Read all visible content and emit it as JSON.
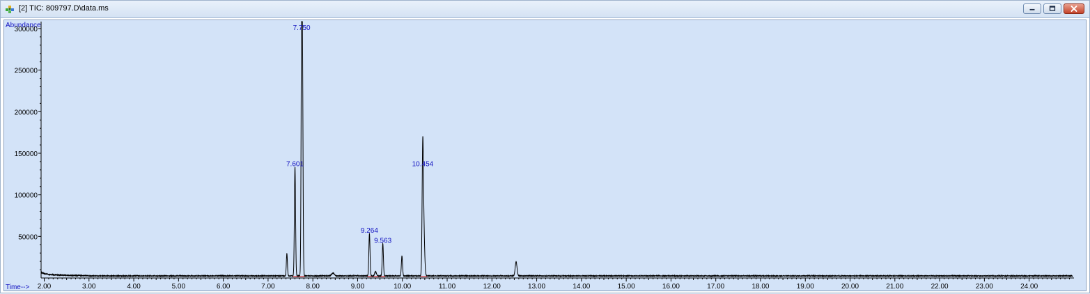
{
  "window": {
    "title": "[2] TIC: 809797.D\\data.ms",
    "icons": [
      "app-icon",
      "minimize-icon",
      "maximize-icon",
      "close-icon"
    ]
  },
  "colors": {
    "plot_background": "#d3e3f8",
    "trace": "#000000",
    "baseline": "#cc0000",
    "peak_label": "#1010c0",
    "axis_label": "#1010c0"
  },
  "chart_data": {
    "type": "line",
    "title": "",
    "xlabel": "Time-->",
    "ylabel": "Abundance",
    "xlim": [
      1.93,
      24.97
    ],
    "ylim": [
      0,
      305000
    ],
    "x_ticks": [
      "2.00",
      "3.00",
      "4.00",
      "5.00",
      "6.00",
      "7.00",
      "8.00",
      "9.00",
      "10.00",
      "11.00",
      "12.00",
      "13.00",
      "14.00",
      "15.00",
      "16.00",
      "17.00",
      "18.00",
      "19.00",
      "20.00",
      "21.00",
      "22.00",
      "23.00",
      "24.00"
    ],
    "y_ticks": [
      "50000",
      "100000",
      "150000",
      "200000",
      "250000",
      "300000"
    ],
    "baseline_level": 2500,
    "start_tail": [
      {
        "x": 1.93,
        "y": 7000
      },
      {
        "x": 2.0,
        "y": 5200
      },
      {
        "x": 2.1,
        "y": 4300
      },
      {
        "x": 2.3,
        "y": 3600
      },
      {
        "x": 2.6,
        "y": 3100
      },
      {
        "x": 3.0,
        "y": 2800
      }
    ],
    "peaks": [
      {
        "rt": 7.42,
        "height": 27000,
        "width": 0.012
      },
      {
        "rt": 7.601,
        "height": 131000,
        "width": 0.013,
        "label": "7.601"
      },
      {
        "rt": 7.75,
        "height": 305000,
        "width": 0.012,
        "label": "7.750"
      },
      {
        "rt": 7.77,
        "height": 210000,
        "width": 0.012
      },
      {
        "rt": 8.45,
        "height": 3500,
        "width": 0.03
      },
      {
        "rt": 9.264,
        "height": 51000,
        "width": 0.013,
        "label": "9.264"
      },
      {
        "rt": 9.4,
        "height": 5000,
        "width": 0.02
      },
      {
        "rt": 9.563,
        "height": 39000,
        "width": 0.013,
        "label": "9.563"
      },
      {
        "rt": 9.99,
        "height": 24000,
        "width": 0.013
      },
      {
        "rt": 10.454,
        "height": 131000,
        "width": 0.014,
        "label": "10.454"
      },
      {
        "rt": 10.475,
        "height": 60000,
        "width": 0.02
      },
      {
        "rt": 12.54,
        "height": 17000,
        "width": 0.02
      }
    ],
    "peak_labels": [
      {
        "text": "7.601",
        "x": 7.601,
        "y": 131000
      },
      {
        "text": "7.750",
        "x": 7.75,
        "y": 305000
      },
      {
        "text": "9.264",
        "x": 9.264,
        "y": 51000
      },
      {
        "text": "9.563",
        "x": 9.563,
        "y": 39000
      },
      {
        "text": "10.454",
        "x": 10.454,
        "y": 131000
      }
    ],
    "baseline_segments": [
      {
        "x0": 7.55,
        "x1": 7.82
      },
      {
        "x0": 9.22,
        "x1": 9.62
      },
      {
        "x0": 10.4,
        "x1": 10.56
      }
    ],
    "grid": false,
    "legend": "none"
  }
}
